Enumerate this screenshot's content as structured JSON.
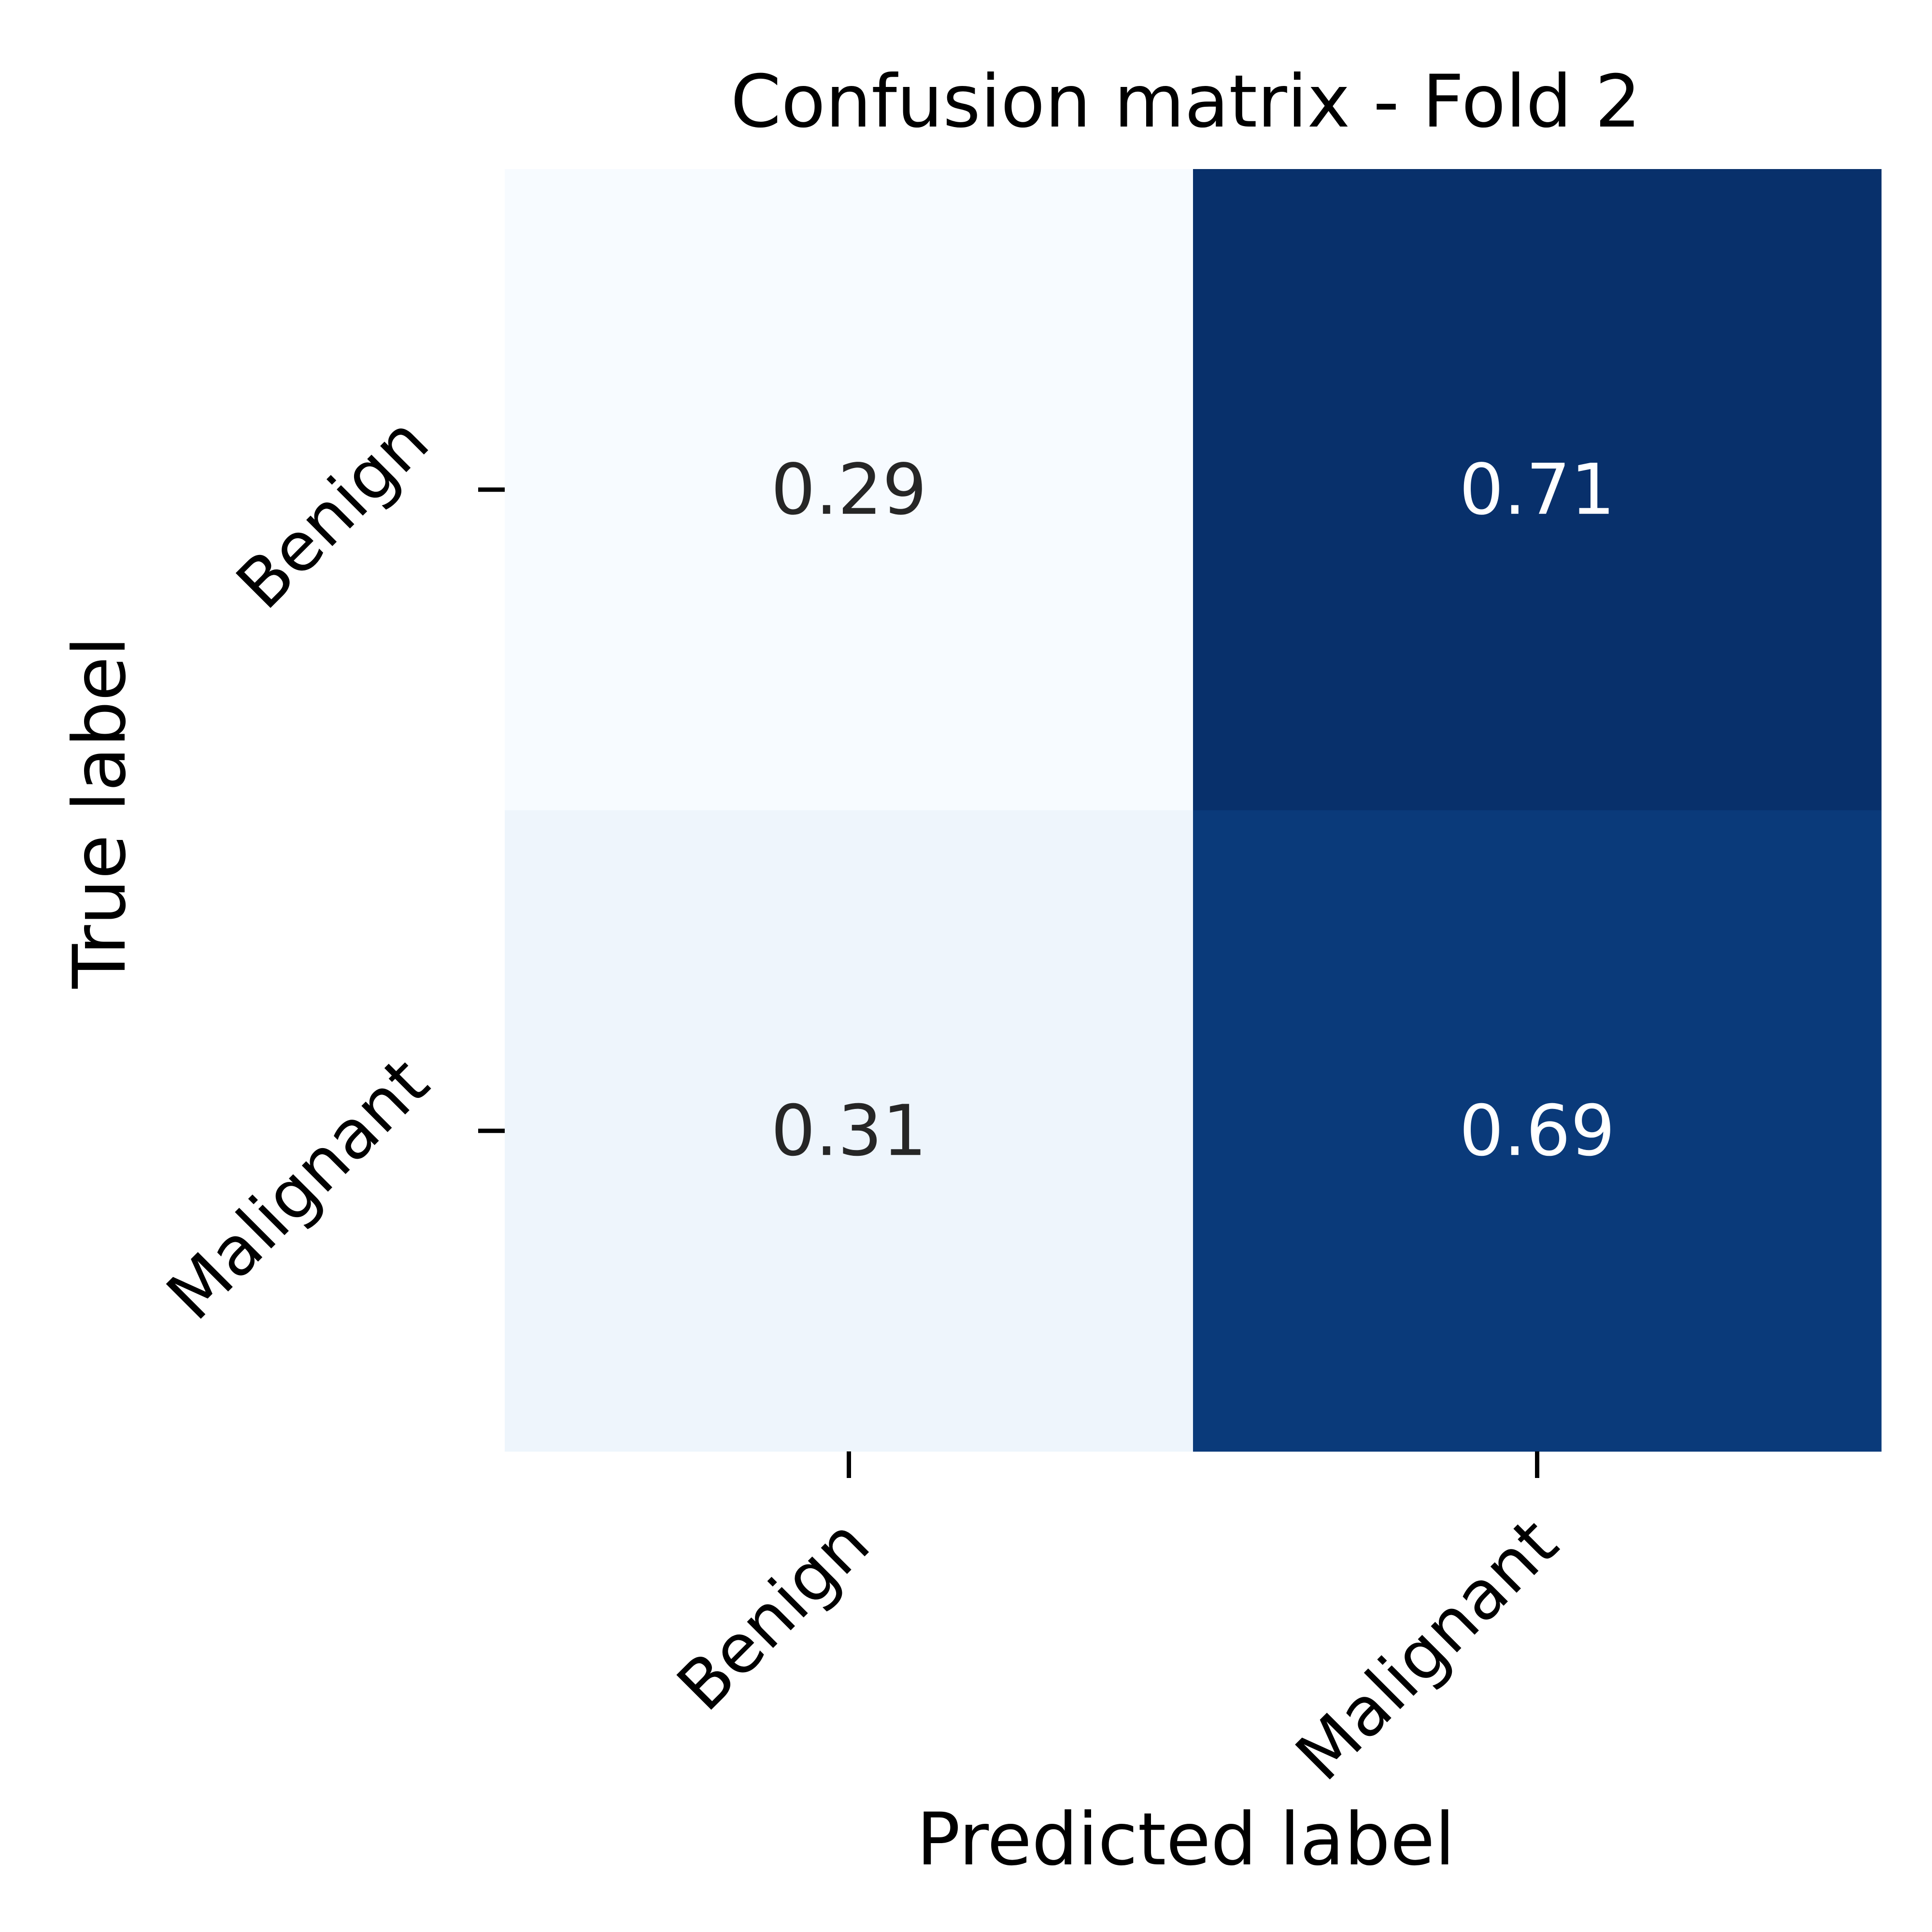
{
  "chart_data": {
    "type": "heatmap",
    "title": "Confusion matrix - Fold 2",
    "xlabel": "Predicted label",
    "ylabel": "True label",
    "x_categories": [
      "Benign",
      "Malignant"
    ],
    "y_categories": [
      "Benign",
      "Malignant"
    ],
    "values": [
      [
        0.29,
        0.71
      ],
      [
        0.31,
        0.69
      ]
    ],
    "value_labels": [
      [
        "0.29",
        "0.71"
      ],
      [
        "0.31",
        "0.69"
      ]
    ],
    "colormap": "Blues",
    "cell_colors": [
      [
        "#f7fbff",
        "#08306b"
      ],
      [
        "#eef5fc",
        "#0a3a7a"
      ]
    ],
    "text_colors": [
      [
        "#262626",
        "#ffffff"
      ],
      [
        "#262626",
        "#ffffff"
      ]
    ],
    "colorbar": false,
    "grid": false
  }
}
